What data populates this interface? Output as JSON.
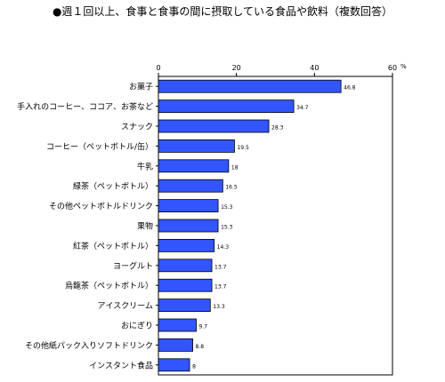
{
  "chart_data": {
    "type": "bar",
    "orientation": "horizontal",
    "title": "●週１回以上、食事と食事の間に摂取している食品や飲料（複数回答）",
    "unit": "%",
    "xlim": [
      0,
      60
    ],
    "ticks": [
      0,
      20,
      40,
      60
    ],
    "grid": false,
    "bar_color": "#3355ff",
    "categories": [
      "お菓子",
      "手入れのコーヒー、ココア、お茶など",
      "スナック",
      "コーヒー（ペットボトル/缶）",
      "牛乳",
      "緑茶（ペットボトル）",
      "その他ペットボトルドリンク",
      "果物",
      "紅茶（ペットボトル）",
      "ヨーグルト",
      "烏龍茶（ペットボトル）",
      "アイスクリーム",
      "おにぎり",
      "その他紙パック入りソフトドリンク",
      "インスタント食品"
    ],
    "values": [
      46.8,
      34.7,
      28.3,
      19.5,
      18,
      16.5,
      15.3,
      15.3,
      14.3,
      13.7,
      13.7,
      13.3,
      9.7,
      8.8,
      8
    ],
    "value_labels": [
      "46.8",
      "34.7",
      "28.3",
      "19.5",
      "18",
      "16.5",
      "15.3",
      "15.3",
      "14.3",
      "13.7",
      "13.7",
      "13.3",
      "9.7",
      "8.8",
      "8"
    ]
  }
}
